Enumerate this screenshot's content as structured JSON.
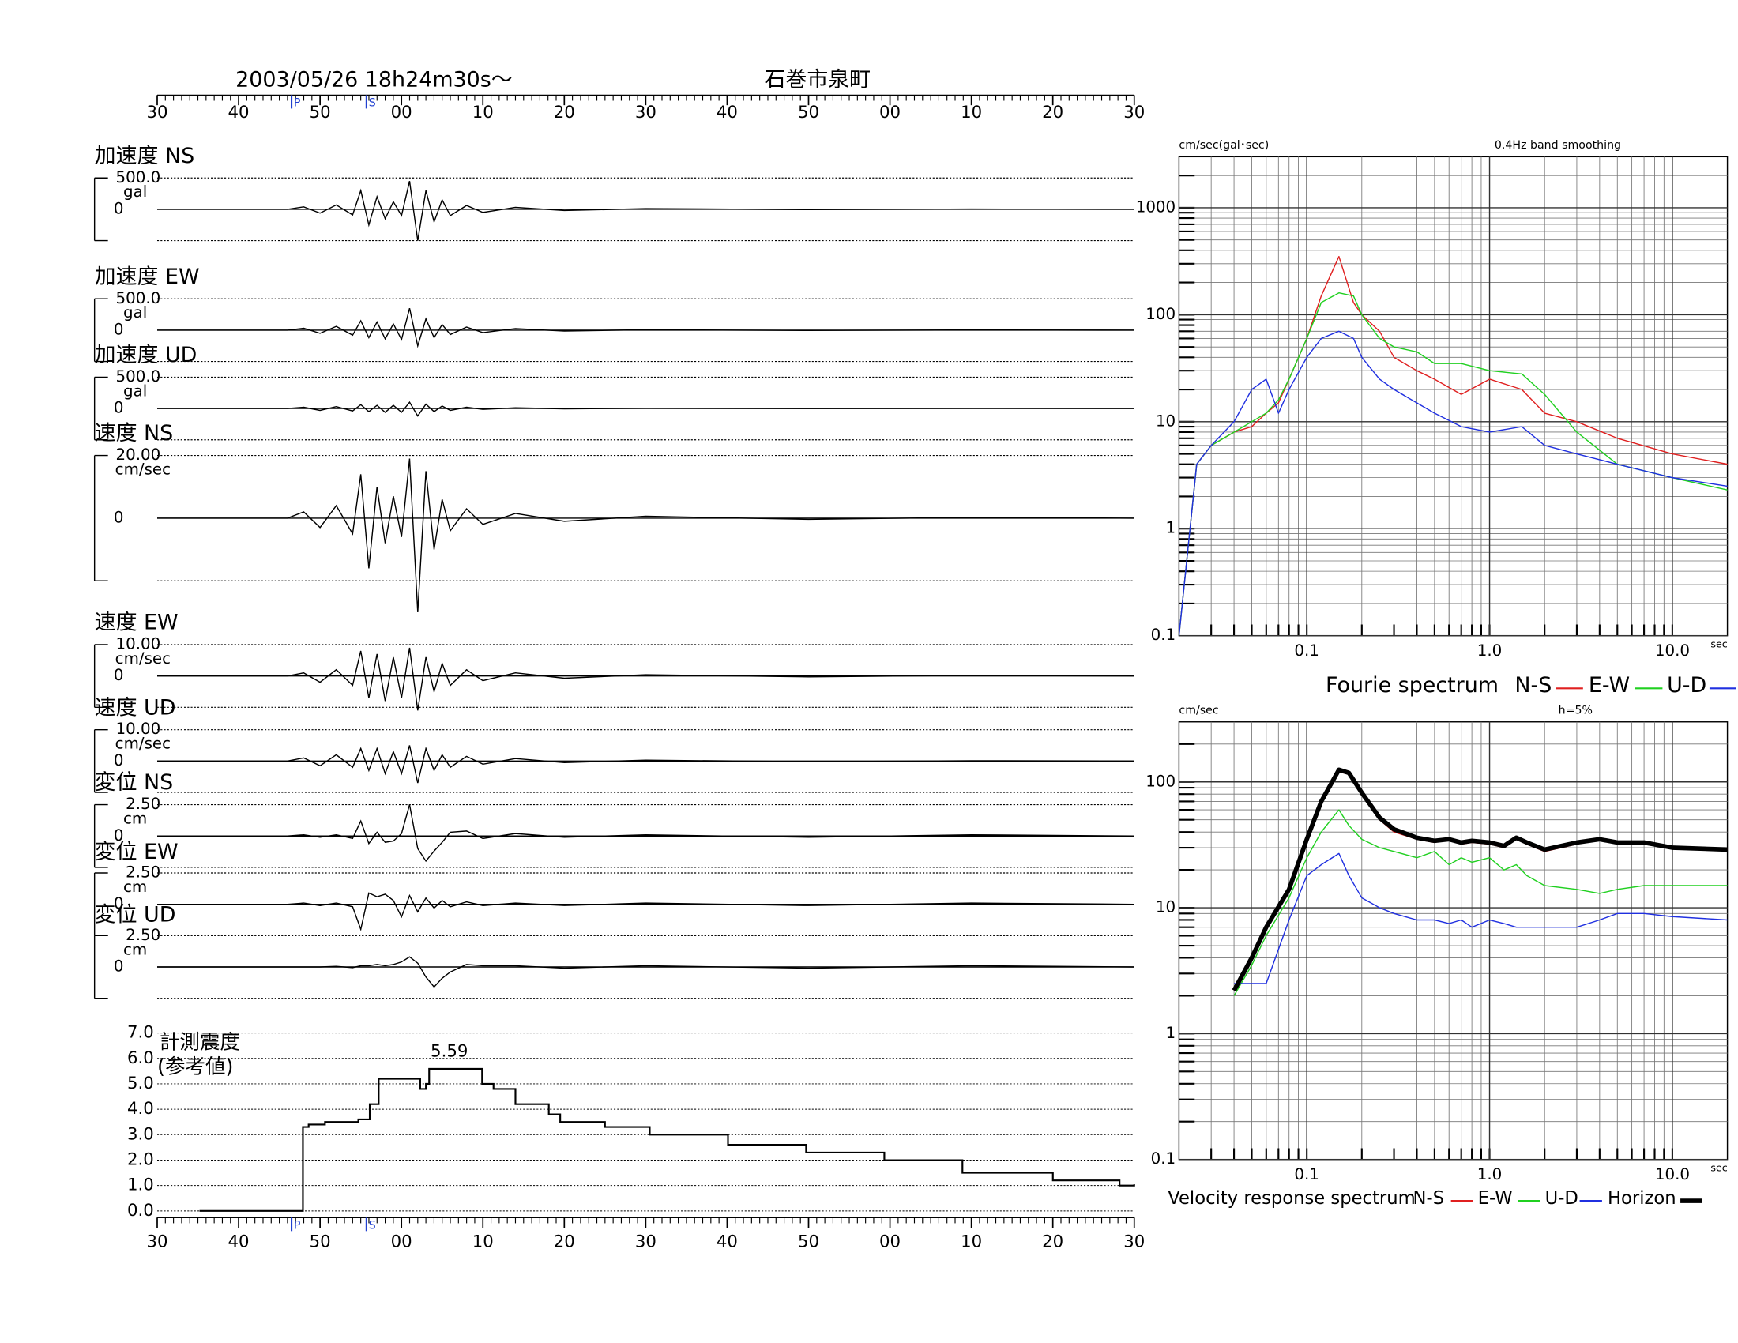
{
  "header": {
    "date": "2003/05/26  18h24m30s〜",
    "station": "石巻市泉町"
  },
  "chart_data": [
    {
      "type": "waveform",
      "xlim": [
        0,
        120
      ],
      "xticks": [
        {
          "value": 0,
          "label": "30"
        },
        {
          "value": 10,
          "label": "40"
        },
        {
          "value": 20,
          "label": "50"
        },
        {
          "value": 30,
          "label": "00"
        },
        {
          "value": 40,
          "label": "10"
        },
        {
          "value": 50,
          "label": "20"
        },
        {
          "value": 60,
          "label": "30"
        },
        {
          "value": 70,
          "label": "40"
        },
        {
          "value": 80,
          "label": "50"
        },
        {
          "value": 90,
          "label": "00"
        },
        {
          "value": 100,
          "label": "10"
        },
        {
          "value": 110,
          "label": "20"
        },
        {
          "value": 120,
          "label": "30"
        }
      ],
      "phase_marks": [
        {
          "label": "P",
          "value": 16.5
        },
        {
          "label": "S",
          "value": 25.7
        }
      ],
      "x": [
        0,
        16,
        18,
        20,
        22,
        24,
        25,
        26,
        27,
        28,
        29,
        30,
        31,
        32,
        33,
        34,
        35,
        36,
        38,
        40,
        44,
        50,
        60,
        80,
        100,
        120
      ],
      "panels": [
        {
          "name": "加速度 NS",
          "unit": "gal",
          "ylim": [
            -500,
            500
          ],
          "yticks": [
            {
              "value": 500,
              "label": "500.0"
            },
            0
          ],
          "values": [
            0,
            0,
            40,
            -60,
            70,
            -90,
            300,
            -250,
            200,
            -150,
            120,
            -100,
            450,
            -500,
            300,
            -200,
            150,
            -100,
            60,
            -50,
            30,
            -20,
            10,
            -5,
            3,
            0
          ]
        },
        {
          "name": "加速度 EW",
          "unit": "gal",
          "ylim": [
            -500,
            500
          ],
          "yticks": [
            {
              "value": 500,
              "label": "500.0"
            },
            0
          ],
          "values": [
            0,
            0,
            30,
            -50,
            60,
            -80,
            150,
            -120,
            130,
            -140,
            100,
            -150,
            350,
            -250,
            180,
            -120,
            90,
            -70,
            50,
            -40,
            25,
            -15,
            8,
            -5,
            3,
            0
          ]
        },
        {
          "name": "加速度 UD",
          "unit": "gal",
          "ylim": [
            -500,
            500
          ],
          "yticks": [
            {
              "value": 500,
              "label": "500.0"
            },
            0
          ],
          "values": [
            0,
            0,
            20,
            -30,
            30,
            -40,
            60,
            -50,
            50,
            -60,
            50,
            -60,
            100,
            -120,
            70,
            -50,
            40,
            -30,
            20,
            -15,
            10,
            -5,
            3,
            -2,
            1,
            0
          ]
        },
        {
          "name": "速度 NS",
          "unit": "cm/sec",
          "ylim": [
            -20,
            20
          ],
          "yticks": [
            {
              "value": 20,
              "label": "20.00"
            },
            0
          ],
          "values": [
            0,
            0,
            2,
            -3,
            4,
            -5,
            14,
            -16,
            10,
            -8,
            7,
            -6,
            19,
            -30,
            15,
            -10,
            6,
            -4,
            3,
            -2,
            1.5,
            -1,
            0.6,
            -0.4,
            0.3,
            0
          ]
        },
        {
          "name": "速度 EW",
          "unit": "cm/sec",
          "ylim": [
            -10,
            10
          ],
          "yticks": [
            {
              "value": 10,
              "label": "10.00"
            },
            0
          ],
          "values": [
            0,
            0,
            1,
            -2,
            2,
            -3,
            8,
            -7,
            7,
            -8,
            6,
            -7,
            9,
            -11,
            6,
            -5,
            4,
            -3,
            2,
            -1.5,
            1,
            -0.7,
            0.4,
            -0.3,
            0.2,
            0
          ]
        },
        {
          "name": "速度 UD",
          "unit": "cm/sec",
          "ylim": [
            -10,
            10
          ],
          "yticks": [
            {
              "value": 10,
              "label": "10.00"
            },
            0
          ],
          "values": [
            0,
            0,
            1,
            -1.5,
            2,
            -2,
            4,
            -3,
            4,
            -4,
            3,
            -4,
            5,
            -7,
            4,
            -3,
            2,
            -2,
            1.5,
            -1,
            0.8,
            -0.5,
            0.3,
            -0.2,
            0.1,
            0
          ]
        },
        {
          "name": "変位 NS",
          "unit": "cm",
          "ylim": [
            -2.5,
            2.5
          ],
          "yticks": [
            {
              "value": 2.5,
              "label": "2.50"
            },
            0
          ],
          "values": [
            0,
            0,
            0.1,
            -0.1,
            0.1,
            -0.2,
            1.2,
            -0.6,
            0.3,
            -0.5,
            -0.4,
            0.2,
            2.5,
            -1.0,
            -2.0,
            -1.2,
            -0.5,
            0.3,
            0.4,
            -0.2,
            0.2,
            -0.1,
            0.1,
            -0.1,
            0.1,
            0
          ]
        },
        {
          "name": "変位 EW",
          "unit": "cm",
          "ylim": [
            -2.5,
            2.5
          ],
          "yticks": [
            {
              "value": 2.5,
              "label": "2.50"
            },
            0
          ],
          "values": [
            0,
            0,
            0.1,
            -0.1,
            0.1,
            -0.2,
            -2.0,
            0.9,
            0.6,
            0.8,
            0.3,
            -1.0,
            0.7,
            -0.6,
            0.5,
            -0.3,
            0.3,
            -0.2,
            0.2,
            -0.1,
            0.1,
            -0.1,
            0.1,
            -0.1,
            0.1,
            0
          ]
        },
        {
          "name": "変位 UD",
          "unit": "cm",
          "ylim": [
            -2.5,
            2.5
          ],
          "yticks": [
            {
              "value": 2.5,
              "label": "2.50"
            },
            0
          ],
          "values": [
            0,
            0,
            0,
            0,
            0.05,
            -0.05,
            0.1,
            0.1,
            0.2,
            0.1,
            0.2,
            0.4,
            0.8,
            0.3,
            -0.8,
            -1.6,
            -0.9,
            -0.4,
            0.2,
            0.1,
            0.1,
            -0.1,
            0.1,
            -0.1,
            0.1,
            0
          ]
        }
      ]
    },
    {
      "type": "intensity",
      "title": "計測震度",
      "subtitle": "(参考値)",
      "peak_label": 5.59,
      "xlim": [
        0,
        120
      ],
      "xticks": [
        {
          "value": 0,
          "label": "30"
        },
        {
          "value": 10,
          "label": "40"
        },
        {
          "value": 20,
          "label": "50"
        },
        {
          "value": 30,
          "label": "00"
        },
        {
          "value": 40,
          "label": "10"
        },
        {
          "value": 50,
          "label": "20"
        },
        {
          "value": 60,
          "label": "30"
        },
        {
          "value": 70,
          "label": "40"
        },
        {
          "value": 80,
          "label": "50"
        },
        {
          "value": 90,
          "label": "00"
        },
        {
          "value": 100,
          "label": "10"
        },
        {
          "value": 110,
          "label": "20"
        },
        {
          "value": 120,
          "label": "30"
        }
      ],
      "phase_marks": [
        {
          "label": "P",
          "value": 16.5
        },
        {
          "label": "S",
          "value": 25.7
        }
      ],
      "ylim": [
        0,
        7
      ],
      "yticks": [
        {
          "value": 0,
          "label": "0.0"
        },
        {
          "value": 1,
          "label": "1.0"
        },
        {
          "value": 2,
          "label": "2.0"
        },
        {
          "value": 3,
          "label": "3.0"
        },
        {
          "value": 4,
          "label": "4.0"
        },
        {
          "value": 5,
          "label": "5.0"
        },
        {
          "value": 6,
          "label": "6.0"
        },
        {
          "value": 7,
          "label": "7.0"
        }
      ],
      "grid": true,
      "x": [
        5.2,
        16.8,
        17.9,
        18.6,
        20.6,
        24.7,
        26.1,
        27.2,
        31.6,
        32.3,
        33,
        33.4,
        37.8,
        39.9,
        41.3,
        44,
        48.1,
        49.5,
        55,
        60.5,
        70.1,
        79.7,
        89.3,
        98.9,
        104.5,
        110,
        118.2,
        120
      ],
      "values": [
        0,
        0,
        3.3,
        3.4,
        3.5,
        3.6,
        4.2,
        5.2,
        5.2,
        4.8,
        5.0,
        5.59,
        5.59,
        5.0,
        4.8,
        4.2,
        3.8,
        3.5,
        3.3,
        3.0,
        2.6,
        2.3,
        2.0,
        1.5,
        1.5,
        1.2,
        1.0,
        1.05
      ]
    },
    {
      "type": "spectrum",
      "legend_title": "Fourie spectrum",
      "ylabel": "cm/sec(gal･sec)",
      "subtitle": "0.4Hz band smoothing",
      "xlabel": "sec",
      "xscale": "log",
      "yscale": "log",
      "grid": true,
      "xlim": [
        0.02,
        20
      ],
      "xticks": [
        {
          "value": 0.1,
          "label": "0.1"
        },
        {
          "value": 1,
          "label": "1.0"
        },
        {
          "value": 10,
          "label": "10.0"
        }
      ],
      "ylim": [
        0.1,
        3000
      ],
      "yticks": [
        0.1,
        1,
        10,
        100,
        1000
      ],
      "x": [
        0.02,
        0.025,
        0.03,
        0.04,
        0.05,
        0.06,
        0.07,
        0.08,
        0.1,
        0.12,
        0.15,
        0.18,
        0.2,
        0.25,
        0.3,
        0.4,
        0.5,
        0.7,
        1.0,
        1.5,
        2,
        3,
        5,
        10,
        20
      ],
      "series": [
        {
          "name": "N-S",
          "color": "#e02020",
          "line_width": 1,
          "values": [
            0.1,
            4,
            6,
            8,
            9,
            12,
            15,
            25,
            60,
            150,
            350,
            130,
            100,
            70,
            40,
            30,
            25,
            18,
            25,
            20,
            12,
            10,
            7,
            5,
            4
          ]
        },
        {
          "name": "E-W",
          "color": "#20d020",
          "line_width": 1,
          "values": [
            0.1,
            4,
            6,
            8,
            10,
            12,
            16,
            25,
            60,
            130,
            160,
            150,
            100,
            60,
            50,
            45,
            35,
            35,
            30,
            28,
            18,
            8,
            4,
            3,
            2.3
          ]
        },
        {
          "name": "U-D",
          "color": "#2030e0",
          "line_width": 1,
          "values": [
            0.1,
            4,
            6,
            10,
            20,
            25,
            12,
            20,
            40,
            60,
            70,
            60,
            40,
            25,
            20,
            15,
            12,
            9,
            8,
            9,
            6,
            5,
            4,
            3,
            2.5
          ]
        }
      ]
    },
    {
      "type": "spectrum",
      "legend_title": "Velocity response spectrum",
      "ylabel": "cm/sec",
      "subtitle": "h=5%",
      "xlabel": "sec",
      "xscale": "log",
      "yscale": "log",
      "grid": true,
      "xlim": [
        0.02,
        20
      ],
      "xticks": [
        {
          "value": 0.1,
          "label": "0.1"
        },
        {
          "value": 1,
          "label": "1.0"
        },
        {
          "value": 10,
          "label": "10.0"
        }
      ],
      "ylim": [
        0.1,
        300
      ],
      "yticks": [
        0.1,
        1,
        10,
        100
      ],
      "x": [
        0.04,
        0.05,
        0.06,
        0.08,
        0.1,
        0.12,
        0.15,
        0.17,
        0.2,
        0.25,
        0.3,
        0.4,
        0.5,
        0.6,
        0.7,
        0.8,
        1.0,
        1.2,
        1.4,
        1.6,
        2,
        3,
        4,
        5,
        7,
        10,
        20
      ],
      "series": [
        {
          "name": "N-S",
          "color": "#e02020",
          "line_width": 1,
          "values": [
            2.2,
            4,
            7,
            14,
            35,
            70,
            120,
            115,
            80,
            50,
            40,
            35,
            33,
            35,
            32,
            33,
            32,
            30,
            35,
            32,
            28,
            32,
            35,
            33,
            33,
            30,
            29
          ]
        },
        {
          "name": "E-W",
          "color": "#20d020",
          "line_width": 1,
          "values": [
            2,
            3.5,
            6,
            12,
            25,
            40,
            60,
            45,
            35,
            30,
            28,
            25,
            28,
            22,
            25,
            23,
            25,
            20,
            22,
            18,
            15,
            14,
            13,
            14,
            15,
            15,
            15
          ]
        },
        {
          "name": "U-D",
          "color": "#2030e0",
          "line_width": 1,
          "values": [
            2.5,
            2.5,
            2.5,
            8,
            18,
            22,
            27,
            18,
            12,
            10,
            9,
            8,
            8,
            7.5,
            8,
            7,
            8,
            7.5,
            7,
            7,
            7,
            7,
            8,
            9,
            9,
            8.5,
            8
          ]
        },
        {
          "name": "Horizon",
          "color": "#000000",
          "line_width": 4,
          "values": [
            2.2,
            4,
            7,
            14,
            35,
            70,
            125,
            118,
            82,
            52,
            42,
            36,
            34,
            35,
            33,
            34,
            33,
            31,
            36,
            33,
            29,
            33,
            35,
            33,
            33,
            30,
            29
          ]
        }
      ]
    }
  ]
}
